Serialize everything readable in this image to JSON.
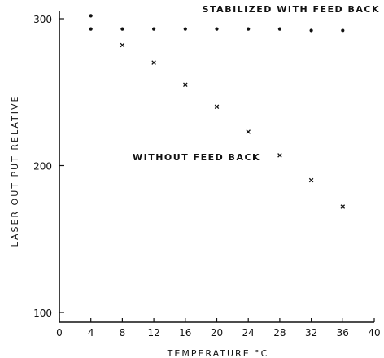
{
  "chart_data": {
    "type": "scatter",
    "xlabel": "TEMPERATURE °C",
    "ylabel": "LASER OUT PUT RELATIVE",
    "xlim": [
      0,
      40
    ],
    "ylim": [
      100,
      300
    ],
    "x_ticks": [
      "0",
      "4",
      "8",
      "12",
      "16",
      "20",
      "24",
      "28",
      "32",
      "36",
      "40"
    ],
    "y_ticks": [
      "100",
      "200",
      "300"
    ],
    "grid": false,
    "series": [
      {
        "name": "STABILIZED WITH FEED BACK",
        "marker": "dot",
        "x": [
          4,
          4,
          8,
          12,
          16,
          20,
          24,
          28,
          32,
          36
        ],
        "y": [
          302,
          293,
          293,
          293,
          293,
          293,
          293,
          293,
          292,
          292
        ]
      },
      {
        "name": "WITHOUT FEED BACK",
        "marker": "cross",
        "x": [
          8,
          12,
          16,
          20,
          24,
          28,
          32,
          36
        ],
        "y": [
          282,
          270,
          255,
          240,
          223,
          207,
          190,
          172
        ]
      }
    ],
    "colors": {
      "ink": "#111111",
      "background": "#ffffff"
    }
  }
}
